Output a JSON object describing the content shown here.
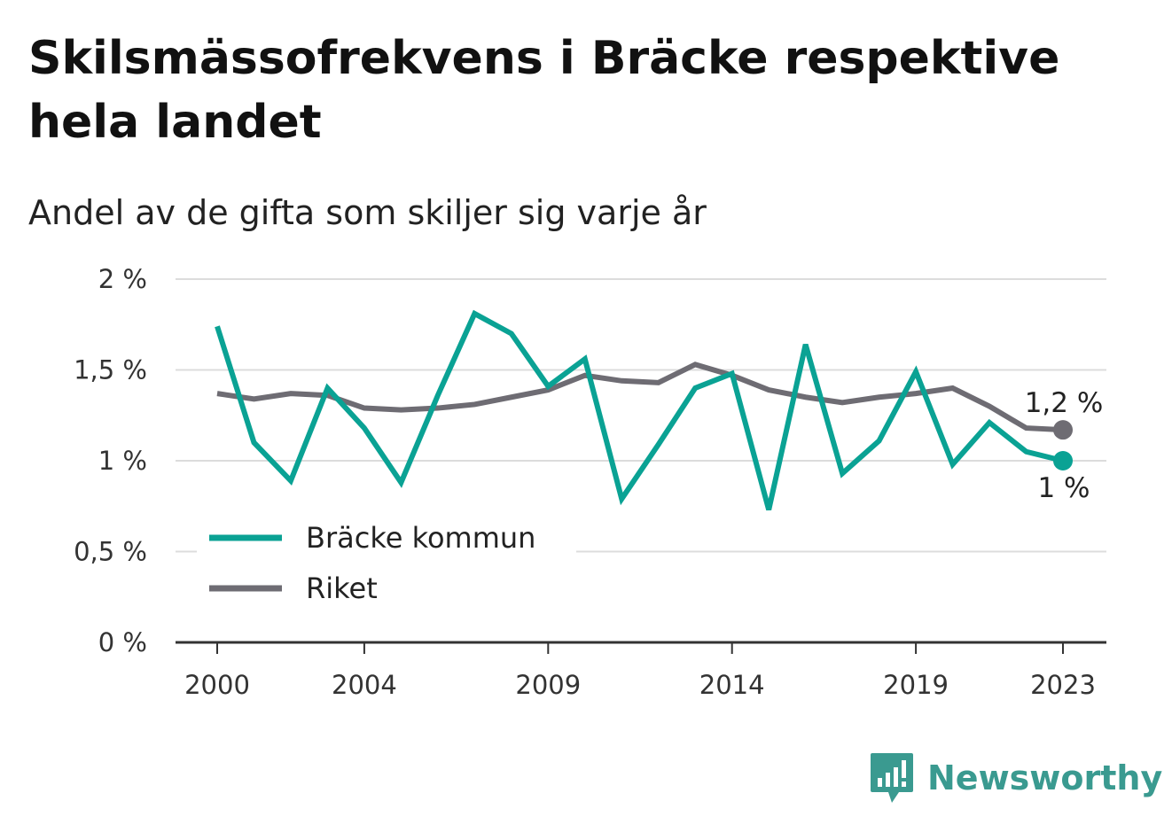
{
  "header": {
    "title": "Skilsmässofrekvens i Bräcke respektive hela landet",
    "subtitle": "Andel av de gifta som skiljer sig varje år"
  },
  "brand": {
    "name": "Newsworthy",
    "icon": "newsworthy-logo-icon"
  },
  "colors": {
    "bracke": "#0aa294",
    "riket": "#6e6c73",
    "grid": "#dcdcdc",
    "axis": "#333333"
  },
  "chart_data": {
    "type": "line",
    "title": "Skilsmässofrekvens i Bräcke respektive hela landet",
    "subtitle": "Andel av de gifta som skiljer sig varje år",
    "x": [
      2000,
      2001,
      2002,
      2003,
      2004,
      2005,
      2006,
      2007,
      2008,
      2009,
      2010,
      2011,
      2012,
      2013,
      2014,
      2015,
      2016,
      2017,
      2018,
      2019,
      2020,
      2021,
      2022,
      2023
    ],
    "x_ticks": [
      "2000",
      "2004",
      "2009",
      "2014",
      "2019",
      "2023"
    ],
    "y_ticks": [
      "0 %",
      "0,5 %",
      "1 %",
      "1,5 %",
      "2 %"
    ],
    "ylim": [
      0,
      2
    ],
    "grid": true,
    "legend_position": "bottom-left",
    "series": [
      {
        "name": "Bräcke kommun",
        "values": [
          1.74,
          1.1,
          0.89,
          1.4,
          1.18,
          0.88,
          1.36,
          1.81,
          1.7,
          1.41,
          1.56,
          0.79,
          1.09,
          1.4,
          1.48,
          0.73,
          1.64,
          0.93,
          1.11,
          1.49,
          0.98,
          1.21,
          1.05,
          1.0
        ],
        "end_label": "1 %"
      },
      {
        "name": "Riket",
        "values": [
          1.37,
          1.34,
          1.37,
          1.36,
          1.29,
          1.28,
          1.29,
          1.31,
          1.35,
          1.39,
          1.47,
          1.44,
          1.43,
          1.53,
          1.47,
          1.39,
          1.35,
          1.32,
          1.35,
          1.37,
          1.4,
          1.3,
          1.18,
          1.17
        ],
        "end_label": "1,2 %"
      }
    ]
  }
}
